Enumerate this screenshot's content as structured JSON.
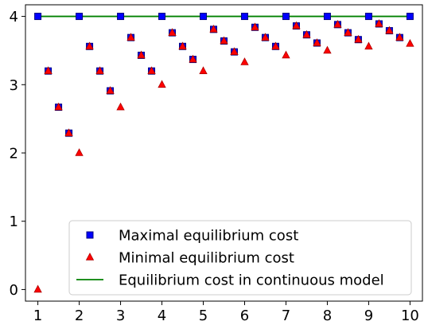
{
  "chart_data": {
    "type": "scatter",
    "title": "",
    "xlabel": "",
    "ylabel": "",
    "xlim": [
      0.7,
      10.3
    ],
    "ylim": [
      -0.17,
      4.17
    ],
    "xticks": [
      1,
      2,
      3,
      4,
      5,
      6,
      7,
      8,
      9,
      10
    ],
    "yticks": [
      0,
      1,
      2,
      3,
      4
    ],
    "grid": false,
    "legend_position": "lower-right",
    "series": [
      {
        "name": "Maximal equilibrium cost",
        "marker": "square",
        "color": "#0000ff",
        "edge_color": "#000080",
        "points": [
          [
            1,
            4
          ],
          [
            1.25,
            3.2
          ],
          [
            1.5,
            2.67
          ],
          [
            1.75,
            2.29
          ],
          [
            2,
            4
          ],
          [
            2.25,
            3.56
          ],
          [
            2.5,
            3.2
          ],
          [
            2.75,
            2.91
          ],
          [
            3,
            4
          ],
          [
            3.25,
            3.69
          ],
          [
            3.5,
            3.43
          ],
          [
            3.75,
            3.2
          ],
          [
            4,
            4
          ],
          [
            4.25,
            3.76
          ],
          [
            4.5,
            3.56
          ],
          [
            4.75,
            3.37
          ],
          [
            5,
            4
          ],
          [
            5.25,
            3.81
          ],
          [
            5.5,
            3.64
          ],
          [
            5.75,
            3.48
          ],
          [
            6,
            4
          ],
          [
            6.25,
            3.84
          ],
          [
            6.5,
            3.69
          ],
          [
            6.75,
            3.56
          ],
          [
            7,
            4
          ],
          [
            7.25,
            3.86
          ],
          [
            7.5,
            3.73
          ],
          [
            7.75,
            3.61
          ],
          [
            8,
            4
          ],
          [
            8.25,
            3.88
          ],
          [
            8.5,
            3.76
          ],
          [
            8.75,
            3.66
          ],
          [
            9,
            4
          ],
          [
            9.25,
            3.89
          ],
          [
            9.5,
            3.79
          ],
          [
            9.75,
            3.69
          ],
          [
            10,
            4
          ]
        ]
      },
      {
        "name": "Minimal equilibrium cost",
        "marker": "triangle",
        "color": "#ff0000",
        "points": [
          [
            1,
            0
          ],
          [
            1.25,
            3.2
          ],
          [
            1.5,
            2.67
          ],
          [
            1.75,
            2.29
          ],
          [
            2,
            2
          ],
          [
            2.25,
            3.56
          ],
          [
            2.5,
            3.2
          ],
          [
            2.75,
            2.91
          ],
          [
            3,
            2.67
          ],
          [
            3.25,
            3.69
          ],
          [
            3.5,
            3.43
          ],
          [
            3.75,
            3.2
          ],
          [
            4,
            3
          ],
          [
            4.25,
            3.76
          ],
          [
            4.5,
            3.56
          ],
          [
            4.75,
            3.37
          ],
          [
            5,
            3.2
          ],
          [
            5.25,
            3.81
          ],
          [
            5.5,
            3.64
          ],
          [
            5.75,
            3.48
          ],
          [
            6,
            3.33
          ],
          [
            6.25,
            3.84
          ],
          [
            6.5,
            3.69
          ],
          [
            6.75,
            3.56
          ],
          [
            7,
            3.43
          ],
          [
            7.25,
            3.86
          ],
          [
            7.5,
            3.73
          ],
          [
            7.75,
            3.61
          ],
          [
            8,
            3.5
          ],
          [
            8.25,
            3.88
          ],
          [
            8.5,
            3.76
          ],
          [
            8.75,
            3.66
          ],
          [
            9,
            3.56
          ],
          [
            9.25,
            3.89
          ],
          [
            9.5,
            3.79
          ],
          [
            9.75,
            3.69
          ],
          [
            10,
            3.6
          ]
        ]
      },
      {
        "name": "Equilibrium cost in continuous model",
        "marker": "line",
        "color": "#008000",
        "points": [
          [
            1,
            4
          ],
          [
            10,
            4
          ]
        ]
      }
    ]
  }
}
